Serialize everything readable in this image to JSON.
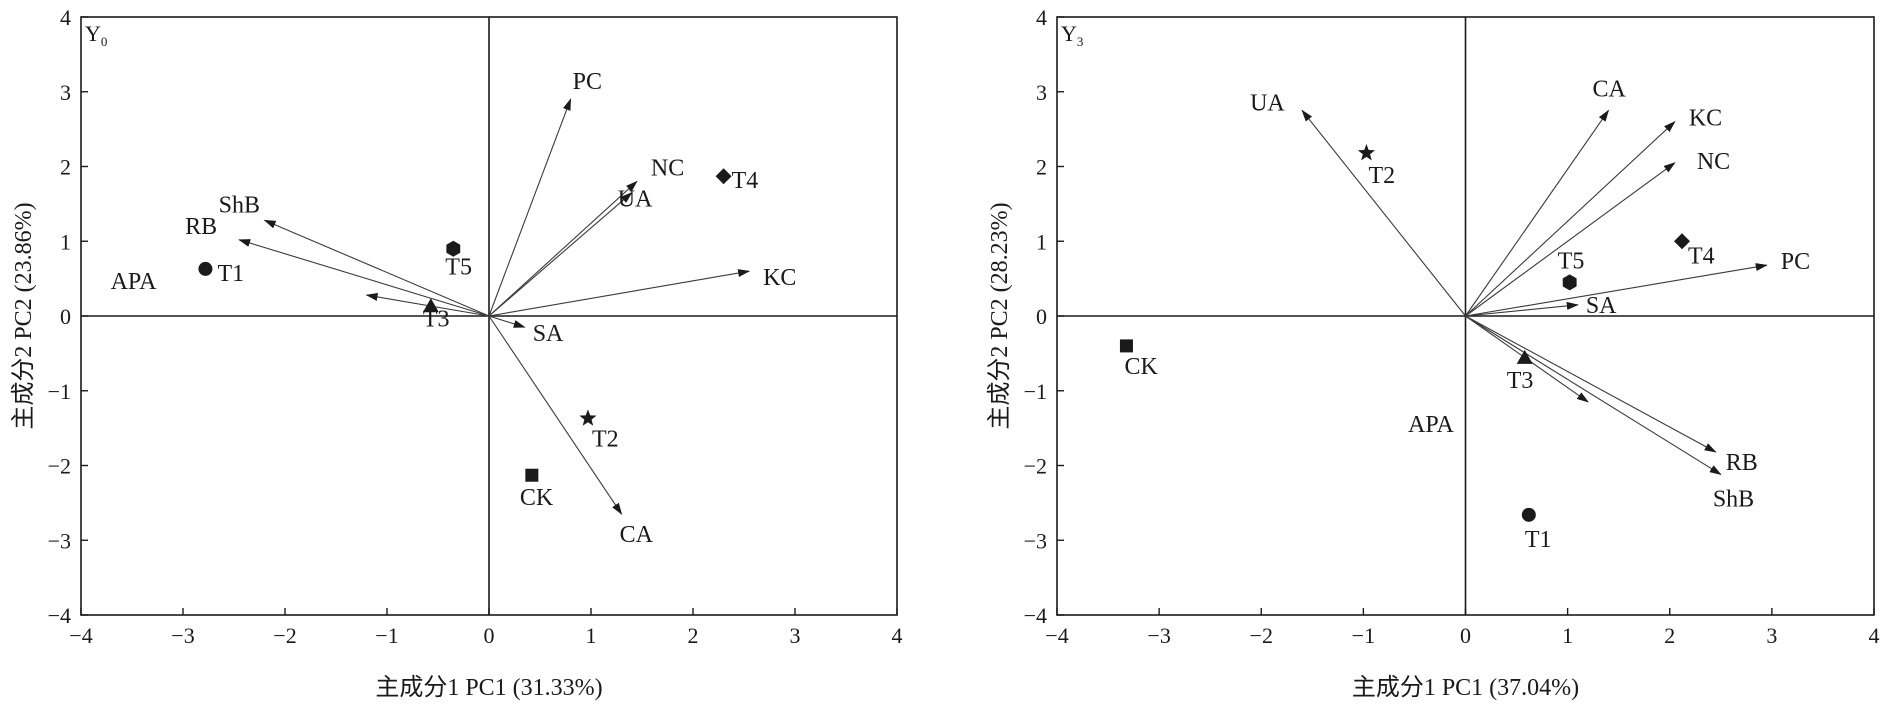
{
  "chart_data": [
    {
      "type": "scatter",
      "subtype": "pca-biplot",
      "panel_label": "Y",
      "panel_label_sub": "0",
      "xlabel": "主成分1 PC1 (31.33%)",
      "ylabel": "主成分2 PC2 (23.86%)",
      "xlim": [
        -4,
        4
      ],
      "ylim": [
        -4,
        4
      ],
      "xticks": [
        "−4",
        "−3",
        "−2",
        "−1",
        "0",
        "1",
        "2",
        "3",
        "4"
      ],
      "yticks": [
        "−4",
        "−3",
        "−2",
        "−1",
        "0",
        "1",
        "2",
        "3",
        "4"
      ],
      "grid": false,
      "vectors": [
        {
          "name": "PC",
          "x": 0.8,
          "y": 2.9
        },
        {
          "name": "NC",
          "x": 1.45,
          "y": 1.8
        },
        {
          "name": "UA",
          "x": 1.4,
          "y": 1.65
        },
        {
          "name": "KC",
          "x": 2.55,
          "y": 0.6
        },
        {
          "name": "SA",
          "x": 0.35,
          "y": -0.15
        },
        {
          "name": "CA",
          "x": 1.3,
          "y": -2.65
        },
        {
          "name": "ShB",
          "x": -2.2,
          "y": 1.28
        },
        {
          "name": "RB",
          "x": -2.45,
          "y": 1.02
        },
        {
          "name": "APA",
          "x": -1.2,
          "y": 0.28
        }
      ],
      "points": [
        {
          "name": "T1",
          "x": -2.78,
          "y": 0.63,
          "marker": "circle"
        },
        {
          "name": "T2",
          "x": 0.97,
          "y": -1.37,
          "marker": "star"
        },
        {
          "name": "T3",
          "x": -0.57,
          "y": 0.13,
          "marker": "triangle"
        },
        {
          "name": "T4",
          "x": 2.3,
          "y": 1.87,
          "marker": "diamond"
        },
        {
          "name": "T5",
          "x": -0.35,
          "y": 0.9,
          "marker": "hexagon"
        },
        {
          "name": "CK",
          "x": 0.42,
          "y": -2.13,
          "marker": "square"
        }
      ]
    },
    {
      "type": "scatter",
      "subtype": "pca-biplot",
      "panel_label": "Y",
      "panel_label_sub": "3",
      "xlabel": "主成分1 PC1 (37.04%)",
      "ylabel": "主成分2 PC2 (28.23%)",
      "xlim": [
        -4,
        4
      ],
      "ylim": [
        -4,
        4
      ],
      "xticks": [
        "−4",
        "−3",
        "−2",
        "−1",
        "0",
        "1",
        "2",
        "3",
        "4"
      ],
      "yticks": [
        "−4",
        "−3",
        "−2",
        "−1",
        "0",
        "1",
        "2",
        "3",
        "4"
      ],
      "grid": false,
      "vectors": [
        {
          "name": "UA",
          "x": -1.6,
          "y": 2.75
        },
        {
          "name": "CA",
          "x": 1.4,
          "y": 2.75
        },
        {
          "name": "KC",
          "x": 2.05,
          "y": 2.6
        },
        {
          "name": "NC",
          "x": 2.05,
          "y": 2.05
        },
        {
          "name": "PC",
          "x": 2.95,
          "y": 0.68
        },
        {
          "name": "SA",
          "x": 1.1,
          "y": 0.15
        },
        {
          "name": "APA",
          "x": 1.2,
          "y": -1.15
        },
        {
          "name": "RB",
          "x": 2.45,
          "y": -1.82
        },
        {
          "name": "ShB",
          "x": 2.5,
          "y": -2.12
        }
      ],
      "points": [
        {
          "name": "T1",
          "x": 0.62,
          "y": -2.66,
          "marker": "circle"
        },
        {
          "name": "T2",
          "x": -0.97,
          "y": 2.18,
          "marker": "star"
        },
        {
          "name": "T3",
          "x": 0.58,
          "y": -0.56,
          "marker": "triangle"
        },
        {
          "name": "T4",
          "x": 2.12,
          "y": 1.0,
          "marker": "diamond"
        },
        {
          "name": "T5",
          "x": 1.02,
          "y": 0.45,
          "marker": "hexagon"
        },
        {
          "name": "CK",
          "x": -3.32,
          "y": -0.4,
          "marker": "square"
        }
      ]
    }
  ]
}
